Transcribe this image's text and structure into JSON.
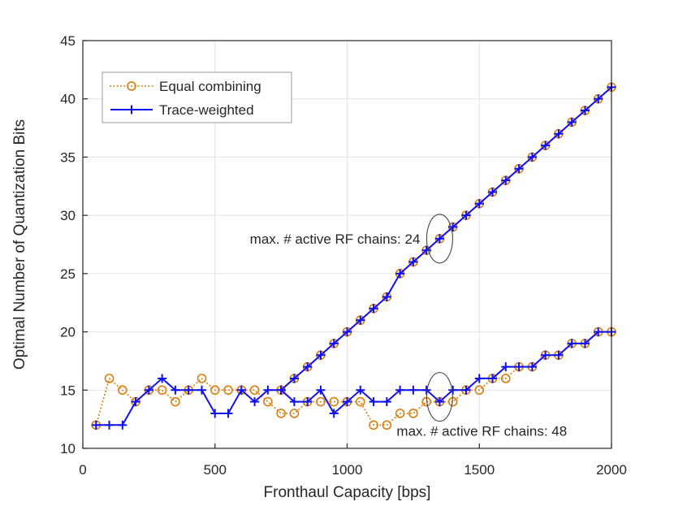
{
  "figure": {
    "xlabel": "Fronthaul Capacity [bps]",
    "ylabel": "Optimal Number of Quantization Bits"
  },
  "legend": {
    "items": [
      {
        "label": "Equal combining",
        "series_index": 0
      },
      {
        "label": "Trace-weighted",
        "series_index": 1
      }
    ]
  },
  "colors": {
    "orange": "#D98419",
    "blue": "#1010EE",
    "grid": "#E2E2E2",
    "axis": "#262626",
    "legend_border": "#999999",
    "annotation": "#444444"
  },
  "chart_data": {
    "type": "line",
    "title": "",
    "xlabel": "Fronthaul Capacity [bps]",
    "ylabel": "Optimal Number of Quantization Bits",
    "xlim": [
      0,
      2000
    ],
    "ylim": [
      10,
      45
    ],
    "xticks": [
      0,
      500,
      1000,
      1500,
      2000
    ],
    "yticks": [
      10,
      15,
      20,
      25,
      30,
      35,
      40,
      45
    ],
    "grid": true,
    "legend_position": "top-left-inside",
    "x": [
      50,
      100,
      150,
      200,
      250,
      300,
      350,
      400,
      450,
      500,
      550,
      600,
      650,
      700,
      750,
      800,
      850,
      900,
      950,
      1000,
      1050,
      1100,
      1150,
      1200,
      1250,
      1300,
      1350,
      1400,
      1450,
      1500,
      1550,
      1600,
      1650,
      1700,
      1750,
      1800,
      1850,
      1900,
      1950,
      2000
    ],
    "series": [
      {
        "name": "Equal combining (max 48 active RF chains)",
        "color": "#D98419",
        "line": "dotted",
        "marker": "circle",
        "values": [
          12,
          16,
          15,
          14,
          15,
          15,
          14,
          15,
          16,
          15,
          15,
          15,
          15,
          14,
          13,
          13,
          14,
          14,
          14,
          14,
          14,
          12,
          12,
          13,
          13,
          14,
          14,
          14,
          15,
          15,
          16,
          16,
          17,
          17,
          18,
          18,
          19,
          19,
          20,
          20
        ]
      },
      {
        "name": "Trace-weighted (max 48 active RF chains)",
        "color": "#1010EE",
        "line": "solid",
        "marker": "plus",
        "values": [
          12,
          12,
          12,
          14,
          15,
          16,
          15,
          15,
          15,
          13,
          13,
          15,
          14,
          15,
          15,
          14,
          14,
          15,
          13,
          14,
          15,
          14,
          14,
          15,
          15,
          15,
          14,
          15,
          15,
          16,
          16,
          17,
          17,
          17,
          18,
          18,
          19,
          19,
          20,
          20
        ]
      },
      {
        "name": "Equal combining (max 24 active RF chains)",
        "color": "#D98419",
        "line": "dotted",
        "marker": "circle",
        "x": [
          750,
          800,
          850,
          900,
          950,
          1000,
          1050,
          1100,
          1150,
          1200,
          1250,
          1300,
          1350,
          1400,
          1450,
          1500,
          1550,
          1600,
          1650,
          1700,
          1750,
          1800,
          1850,
          1900,
          1950,
          2000
        ],
        "values": [
          15,
          16,
          17,
          18,
          19,
          20,
          21,
          22,
          23,
          25,
          26,
          27,
          28,
          29,
          30,
          31,
          32,
          33,
          34,
          35,
          36,
          37,
          38,
          39,
          40,
          41
        ]
      },
      {
        "name": "Trace-weighted (max 24 active RF chains)",
        "color": "#1010EE",
        "line": "solid",
        "marker": "plus",
        "x": [
          750,
          800,
          850,
          900,
          950,
          1000,
          1050,
          1100,
          1150,
          1200,
          1250,
          1300,
          1350,
          1400,
          1450,
          1500,
          1550,
          1600,
          1650,
          1700,
          1750,
          1800,
          1850,
          1900,
          1950,
          2000
        ],
        "values": [
          15,
          16,
          17,
          18,
          19,
          20,
          21,
          22,
          23,
          25,
          26,
          27,
          28,
          29,
          30,
          31,
          32,
          33,
          34,
          35,
          36,
          37,
          38,
          39,
          40,
          41
        ]
      }
    ],
    "annotations": [
      {
        "text": "max. # active RF chains: 24",
        "target": {
          "x": 1350,
          "y": 28
        },
        "text_side": "left"
      },
      {
        "text": "max. # active RF chains: 48",
        "target": {
          "x": 1350,
          "y": 14
        },
        "text_side": "below"
      }
    ]
  }
}
